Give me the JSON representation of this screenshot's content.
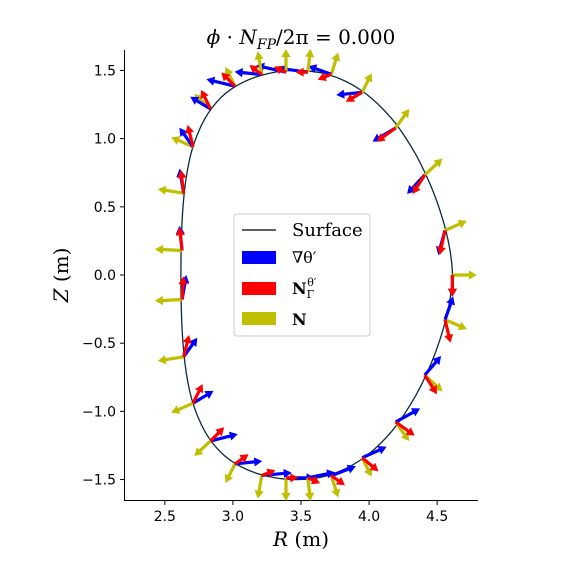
{
  "chart_data": {
    "type": "line",
    "title": "ϕ · N_FP/2π = 0.000",
    "title_parts": {
      "phi": "ϕ",
      "dot": " · ",
      "N": "N",
      "sub": "FP",
      "rest": "/2π = 0.000"
    },
    "xlabel": "R (m)",
    "xlabel_parts": {
      "var": "R",
      "unit": " (m)"
    },
    "ylabel": "Z (m)",
    "ylabel_parts": {
      "var": "Z",
      "unit": " (m)"
    },
    "xlim": [
      2.2,
      4.8
    ],
    "ylim": [
      -1.65,
      1.65
    ],
    "xticks": [
      2.5,
      3.0,
      3.5,
      4.0,
      4.5
    ],
    "yticks": [
      -1.5,
      -1.0,
      -0.5,
      0.0,
      0.5,
      1.0,
      1.5
    ],
    "xtick_labels": [
      "2.5",
      "3.0",
      "3.5",
      "4.0",
      "4.5"
    ],
    "ytick_labels": [
      "−1.5",
      "−1.0",
      "−0.5",
      "0.0",
      "0.5",
      "1.0",
      "1.5"
    ],
    "grid": false,
    "legend_placement": "center",
    "legend": [
      {
        "label": "Surface",
        "kind": "line",
        "color": "#000000"
      },
      {
        "label": "∇θ′",
        "kind": "patch",
        "color": "#0000ff"
      },
      {
        "label": "N_Γ^θ′",
        "kind": "patch",
        "color": "#ff0000",
        "parts": {
          "base": "N",
          "sub": "Γ",
          "sup": "θ′"
        }
      },
      {
        "label": "N",
        "kind": "patch",
        "color": "#bfbf00"
      }
    ],
    "surface": {
      "name": "Surface",
      "color": "#0a2a3a",
      "R": [
        4.612,
        4.59,
        4.537,
        4.453,
        4.332,
        4.163,
        3.945,
        3.691,
        3.43,
        3.2,
        3.02,
        2.882,
        2.77,
        2.683,
        2.633,
        2.618,
        2.633,
        2.683,
        2.77,
        2.882,
        3.02,
        3.2,
        3.43,
        3.691,
        3.945,
        4.163,
        4.332,
        4.453,
        4.537,
        4.59,
        4.612
      ],
      "Z": [
        0.0,
        0.205,
        0.421,
        0.654,
        0.903,
        1.15,
        1.352,
        1.472,
        1.5,
        1.462,
        1.384,
        1.27,
        1.101,
        0.855,
        0.5,
        0.0,
        -0.5,
        -0.855,
        -1.101,
        -1.27,
        -1.384,
        -1.462,
        -1.5,
        -1.472,
        -1.352,
        -1.15,
        -0.903,
        -0.654,
        -0.421,
        -0.205,
        0.0
      ]
    },
    "arrows": {
      "R": [
        4.612,
        4.558,
        4.409,
        4.195,
        3.949,
        3.723,
        3.55,
        3.39,
        3.212,
        3.015,
        2.836,
        2.707,
        2.638,
        2.627,
        2.627,
        2.638,
        2.707,
        2.836,
        3.015,
        3.212,
        3.39,
        3.55,
        3.723,
        3.949,
        4.195,
        4.409,
        4.558
      ],
      "Z": [
        0.0,
        0.327,
        0.734,
        1.078,
        1.34,
        1.472,
        1.487,
        1.487,
        1.47,
        1.385,
        1.217,
        0.94,
        0.6,
        0.18,
        -0.18,
        -0.6,
        -0.94,
        -1.217,
        -1.385,
        -1.47,
        -1.487,
        -1.487,
        -1.472,
        -1.34,
        -1.078,
        -0.734,
        -0.327
      ],
      "grad_theta": {
        "name": "∇θ′",
        "color": "#0000ff",
        "dR": [
          0.0,
          -0.05,
          -0.13,
          -0.17,
          -0.19,
          -0.17,
          -0.22,
          -0.22,
          -0.2,
          -0.21,
          -0.15,
          -0.1,
          -0.03,
          -0.02,
          0.03,
          0.1,
          0.15,
          0.2,
          0.2,
          0.22,
          0.21,
          0.2,
          0.18,
          0.18,
          0.18,
          0.12,
          0.06
        ],
        "dZ": [
          -0.16,
          -0.18,
          -0.14,
          -0.1,
          -0.02,
          0.06,
          0.03,
          0.05,
          0.02,
          0.05,
          0.09,
          0.14,
          0.18,
          0.18,
          0.18,
          0.14,
          0.09,
          0.05,
          0.02,
          0.02,
          0.0,
          0.04,
          0.07,
          0.08,
          0.1,
          0.14,
          0.17
        ]
      },
      "NGamma": {
        "name": "N_Γ^θ′",
        "color": "#ff0000",
        "dR": [
          0.0,
          -0.04,
          -0.09,
          -0.14,
          -0.12,
          -0.1,
          -0.09,
          -0.09,
          -0.09,
          -0.1,
          -0.07,
          -0.04,
          -0.02,
          -0.02,
          0.01,
          0.04,
          0.07,
          0.1,
          0.1,
          0.1,
          0.09,
          0.09,
          0.1,
          0.12,
          0.14,
          0.09,
          0.04
        ],
        "dZ": [
          -0.16,
          -0.18,
          -0.14,
          -0.1,
          -0.07,
          -0.04,
          0.0,
          0.04,
          0.07,
          0.1,
          0.14,
          0.16,
          0.17,
          0.17,
          0.17,
          0.16,
          0.14,
          0.1,
          0.07,
          0.04,
          0.0,
          -0.04,
          -0.07,
          -0.1,
          -0.1,
          -0.14,
          -0.17
        ]
      },
      "N": {
        "name": "N",
        "color": "#bfbf00",
        "dR": [
          0.18,
          0.16,
          0.13,
          0.1,
          0.07,
          0.05,
          0.02,
          0.0,
          -0.03,
          -0.07,
          -0.12,
          -0.16,
          -0.19,
          -0.2,
          -0.2,
          -0.19,
          -0.16,
          -0.12,
          -0.07,
          -0.03,
          0.0,
          0.02,
          0.05,
          0.07,
          0.1,
          0.13,
          0.16
        ],
        "dZ": [
          0.0,
          0.07,
          0.12,
          0.14,
          0.14,
          0.16,
          0.17,
          0.17,
          0.17,
          0.14,
          0.11,
          0.07,
          0.03,
          0.01,
          -0.01,
          -0.03,
          -0.07,
          -0.11,
          -0.14,
          -0.17,
          -0.17,
          -0.17,
          -0.16,
          -0.14,
          -0.14,
          -0.12,
          -0.07
        ]
      }
    }
  }
}
